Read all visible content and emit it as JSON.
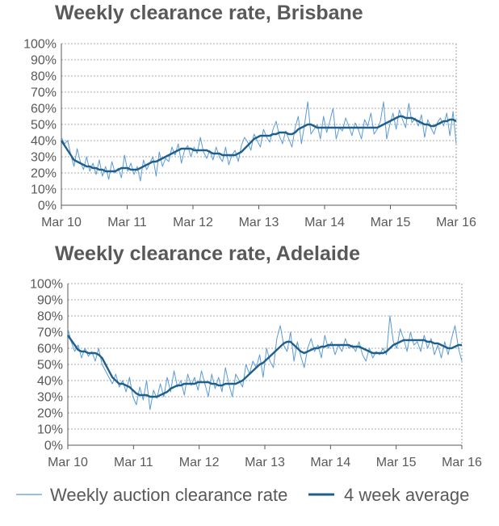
{
  "colors": {
    "weekly": "#5b9bd5",
    "average": "#1f5f8b",
    "text": "#595959"
  },
  "legend": {
    "weekly_label": "Weekly auction clearance rate",
    "average_label": "4 week average"
  },
  "chart_data": [
    {
      "type": "line",
      "title": "Weekly clearance rate, Brisbane",
      "xlabel": "",
      "ylabel": "",
      "x_ticks": [
        "Mar 10",
        "Mar 11",
        "Mar 12",
        "Mar 13",
        "Mar 14",
        "Mar 15",
        "Mar 16"
      ],
      "y_ticks": [
        "0%",
        "10%",
        "20%",
        "30%",
        "40%",
        "50%",
        "60%",
        "70%",
        "80%",
        "90%",
        "100%"
      ],
      "ylim": [
        0,
        100
      ],
      "grid": true,
      "series": [
        {
          "name": "Weekly auction clearance rate",
          "x_start": "Mar 10",
          "x_end": "Mar 16",
          "values": [
            42,
            38,
            40,
            31,
            24,
            35,
            27,
            22,
            30,
            21,
            26,
            19,
            28,
            18,
            24,
            16,
            27,
            20,
            23,
            17,
            31,
            21,
            26,
            19,
            24,
            15,
            28,
            22,
            26,
            30,
            18,
            33,
            24,
            29,
            27,
            36,
            31,
            38,
            26,
            34,
            37,
            30,
            36,
            32,
            42,
            33,
            29,
            34,
            28,
            36,
            30,
            27,
            36,
            25,
            31,
            34,
            27,
            37,
            42,
            39,
            34,
            44,
            40,
            36,
            47,
            42,
            39,
            47,
            52,
            43,
            38,
            46,
            41,
            36,
            48,
            55,
            38,
            50,
            64,
            44,
            47,
            50,
            41,
            55,
            45,
            52,
            60,
            41,
            48,
            46,
            54,
            49,
            43,
            51,
            47,
            41,
            53,
            49,
            57,
            44,
            47,
            52,
            64,
            41,
            50,
            57,
            47,
            59,
            53,
            48,
            63,
            51,
            54,
            49,
            56,
            42,
            53,
            48,
            44,
            51,
            54,
            49,
            57,
            43,
            58,
            38
          ]
        },
        {
          "name": "4 week average",
          "x_start": "Mar 10",
          "x_end": "Mar 16",
          "values": [
            40,
            37,
            34,
            31,
            28,
            27,
            26,
            25,
            24,
            24,
            23,
            23,
            22,
            22,
            21,
            21,
            21,
            21,
            22,
            23,
            23,
            23,
            22,
            22,
            22,
            23,
            24,
            25,
            26,
            27,
            27,
            28,
            29,
            30,
            31,
            32,
            33,
            34,
            35,
            35,
            35,
            35,
            34,
            34,
            34,
            34,
            34,
            33,
            32,
            32,
            32,
            31,
            31,
            31,
            31,
            31,
            32,
            33,
            35,
            37,
            39,
            41,
            42,
            43,
            43,
            43,
            43,
            44,
            44,
            45,
            45,
            45,
            44,
            44,
            45,
            47,
            48,
            49,
            50,
            50,
            49,
            48,
            48,
            48,
            48,
            48,
            48,
            48,
            48,
            48,
            48,
            48,
            48,
            48,
            48,
            48,
            48,
            48,
            48,
            48,
            48,
            49,
            50,
            51,
            52,
            53,
            54,
            55,
            55,
            54,
            54,
            54,
            53,
            52,
            51,
            50,
            50,
            49,
            49,
            50,
            51,
            52,
            52,
            53,
            53,
            52
          ]
        }
      ]
    },
    {
      "type": "line",
      "title": "Weekly clearance rate, Adelaide",
      "xlabel": "",
      "ylabel": "",
      "x_ticks": [
        "Mar 10",
        "Mar 11",
        "Mar 12",
        "Mar 13",
        "Mar 14",
        "Mar 15",
        "Mar 16"
      ],
      "y_ticks": [
        "0%",
        "10%",
        "20%",
        "30%",
        "40%",
        "50%",
        "60%",
        "70%",
        "80%",
        "90%",
        "100%"
      ],
      "ylim": [
        0,
        100
      ],
      "grid": true,
      "series": [
        {
          "name": "Weekly auction clearance rate",
          "x_start": "Mar 10",
          "x_end": "Mar 16",
          "values": [
            72,
            64,
            58,
            62,
            54,
            60,
            55,
            58,
            52,
            60,
            50,
            46,
            42,
            38,
            44,
            36,
            40,
            33,
            42,
            30,
            25,
            36,
            28,
            40,
            22,
            34,
            29,
            38,
            30,
            42,
            33,
            46,
            36,
            40,
            31,
            44,
            37,
            42,
            34,
            46,
            38,
            30,
            44,
            35,
            42,
            33,
            48,
            38,
            30,
            44,
            40,
            36,
            50,
            44,
            52,
            48,
            56,
            42,
            60,
            52,
            48,
            66,
            74,
            62,
            58,
            70,
            52,
            64,
            55,
            48,
            60,
            66,
            58,
            62,
            54,
            68,
            60,
            64,
            56,
            62,
            58,
            66,
            60,
            62,
            58,
            64,
            56,
            52,
            60,
            54,
            58,
            56,
            60,
            56,
            80,
            64,
            60,
            72,
            66,
            58,
            70,
            62,
            64,
            58,
            68,
            60,
            66,
            56,
            62,
            54,
            64,
            56,
            66,
            74,
            60,
            52
          ]
        },
        {
          "name": "4 week average",
          "x_start": "Mar 10",
          "x_end": "Mar 16",
          "values": [
            68,
            65,
            62,
            59,
            58,
            58,
            57,
            57,
            57,
            56,
            54,
            50,
            46,
            42,
            40,
            38,
            38,
            37,
            36,
            34,
            32,
            31,
            31,
            31,
            30,
            30,
            30,
            31,
            32,
            33,
            35,
            36,
            37,
            37,
            38,
            38,
            38,
            38,
            39,
            39,
            39,
            39,
            38,
            38,
            37,
            37,
            38,
            38,
            38,
            38,
            39,
            40,
            42,
            44,
            46,
            48,
            50,
            51,
            53,
            55,
            57,
            59,
            61,
            63,
            64,
            64,
            62,
            60,
            58,
            57,
            58,
            59,
            60,
            60,
            61,
            61,
            62,
            62,
            62,
            62,
            62,
            62,
            62,
            61,
            61,
            61,
            60,
            59,
            58,
            57,
            57,
            57,
            57,
            58,
            60,
            62,
            63,
            64,
            65,
            65,
            65,
            65,
            65,
            65,
            65,
            64,
            64,
            63,
            63,
            62,
            61,
            60,
            60,
            61,
            62,
            62
          ]
        }
      ]
    }
  ]
}
